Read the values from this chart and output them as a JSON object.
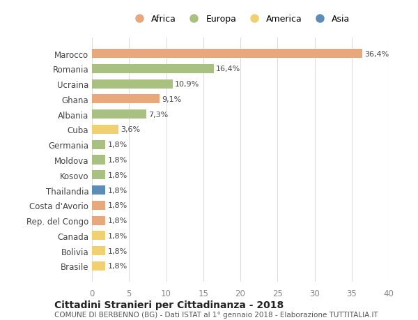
{
  "countries": [
    "Marocco",
    "Romania",
    "Ucraina",
    "Ghana",
    "Albania",
    "Cuba",
    "Germania",
    "Moldova",
    "Kosovo",
    "Thailandia",
    "Costa d'Avorio",
    "Rep. del Congo",
    "Canada",
    "Bolivia",
    "Brasile"
  ],
  "values": [
    36.4,
    16.4,
    10.9,
    9.1,
    7.3,
    3.6,
    1.8,
    1.8,
    1.8,
    1.8,
    1.8,
    1.8,
    1.8,
    1.8,
    1.8
  ],
  "labels": [
    "36,4%",
    "16,4%",
    "10,9%",
    "9,1%",
    "7,3%",
    "3,6%",
    "1,8%",
    "1,8%",
    "1,8%",
    "1,8%",
    "1,8%",
    "1,8%",
    "1,8%",
    "1,8%",
    "1,8%"
  ],
  "continent": [
    "Africa",
    "Europa",
    "Europa",
    "Africa",
    "Europa",
    "America",
    "Europa",
    "Europa",
    "Europa",
    "Asia",
    "Africa",
    "Africa",
    "America",
    "America",
    "America"
  ],
  "colors": {
    "Africa": "#E8A87C",
    "Europa": "#A8C080",
    "America": "#F0D070",
    "Asia": "#5B8DB8"
  },
  "legend_order": [
    "Africa",
    "Europa",
    "America",
    "Asia"
  ],
  "legend_colors": [
    "#E8A87C",
    "#A8C080",
    "#F0D070",
    "#5B8DB8"
  ],
  "title_main": "Cittadini Stranieri per Cittadinanza - 2018",
  "title_sub": "COMUNE DI BERBENNO (BG) - Dati ISTAT al 1° gennaio 2018 - Elaborazione TUTTITALIA.IT",
  "xlim": [
    0,
    40
  ],
  "xticks": [
    0,
    5,
    10,
    15,
    20,
    25,
    30,
    35,
    40
  ],
  "background_color": "#ffffff",
  "grid_color": "#dddddd"
}
